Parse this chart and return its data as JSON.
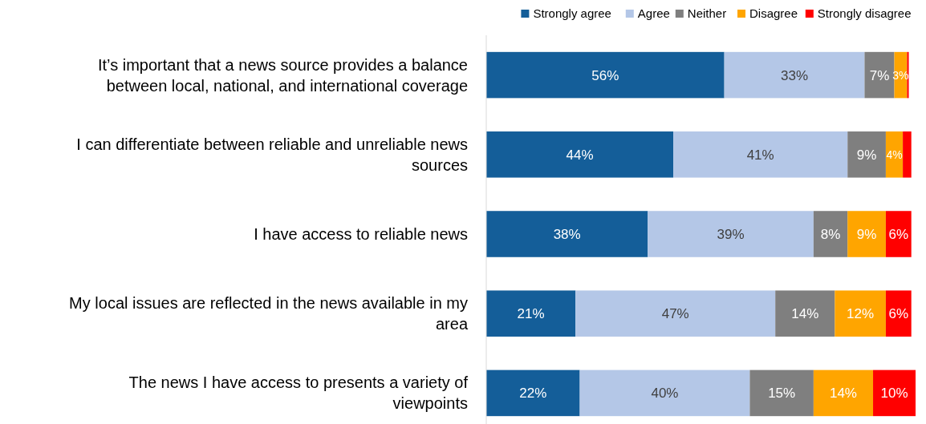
{
  "chart_data": {
    "type": "bar",
    "orientation": "horizontal",
    "stacked": true,
    "legend": "top right",
    "xlim": [
      0,
      101
    ],
    "tick_labels": "y",
    "categories": [
      "It’s important that a news source provides a balance between local, national, and international coverage",
      "I can differentiate between reliable and unreliable news sources",
      "I have access to reliable news",
      "My local issues are reflected in the news available in my area",
      "The news I have access to presents a variety of viewpoints"
    ],
    "series": [
      {
        "name": "Strongly agree",
        "color": "#145e99",
        "values": [
          56,
          44,
          38,
          21,
          22
        ],
        "value_labels": [
          "56%",
          "44%",
          "38%",
          "21%",
          "22%"
        ]
      },
      {
        "name": "Agree",
        "color": "#b4c7e7",
        "values": [
          33,
          41,
          39,
          47,
          40
        ],
        "value_labels": [
          "33%",
          "41%",
          "39%",
          "47%",
          "40%"
        ]
      },
      {
        "name": "Neither",
        "color": "#7f7f7f",
        "values": [
          7,
          9,
          8,
          14,
          15
        ],
        "value_labels": [
          "7%",
          "9%",
          "8%",
          "14%",
          "15%"
        ]
      },
      {
        "name": "Disagree",
        "color": "#ffa500",
        "values": [
          3,
          4,
          9,
          12,
          14
        ],
        "value_labels": [
          "3%",
          "4%",
          "9%",
          "12%",
          "14%"
        ]
      },
      {
        "name": "Strongly disagree",
        "color": "#ff0000",
        "values": [
          0.4,
          2,
          6,
          6,
          10
        ],
        "value_labels": [
          null,
          null,
          "6%",
          "6%",
          "10%"
        ]
      }
    ]
  }
}
